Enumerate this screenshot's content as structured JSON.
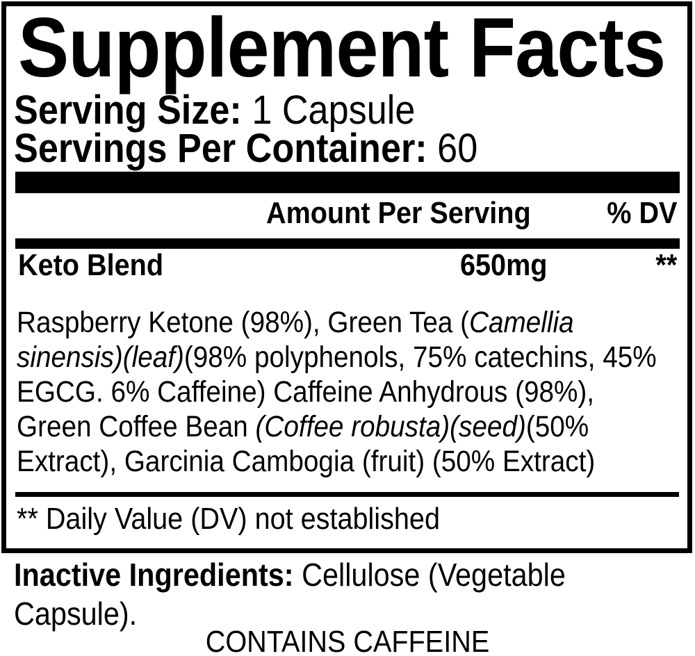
{
  "colors": {
    "ink": "#000000",
    "background": "#ffffff"
  },
  "label": {
    "title": "Supplement Facts",
    "serving_size": {
      "label": "Serving Size:",
      "value": " 1 Capsule"
    },
    "servings_per_container": {
      "label": "Servings Per Container:",
      "value": " 60"
    },
    "columns": {
      "amount_header": "Amount Per Serving",
      "dv_header": "% DV"
    },
    "blend": {
      "name": "Keto Blend",
      "amount": "650mg",
      "dv": "**"
    },
    "ingredients_lines": [
      {
        "pre": "Raspberry Ketone (98%), Green Tea (",
        "italic": "Camellia",
        "post": ""
      },
      {
        "pre": "",
        "italic": "sinensis)(leaf)",
        "post": "(98% polyphenols, 75% catechins, 45%"
      },
      {
        "pre": "EGCG. 6% Caffeine) Caffeine Anhydrous (98%),",
        "italic": "",
        "post": ""
      },
      {
        "pre": "Green Coffee Bean ",
        "italic": "(Coffee robusta)(seed)",
        "post": "(50%"
      },
      {
        "pre": "Extract), Garcinia Cambogia (fruit) (50% Extract)",
        "italic": "",
        "post": ""
      }
    ],
    "footnote": "** Daily Value (DV) not established",
    "inactive": {
      "label": "Inactive Ingredients:",
      "value_line1": " Cellulose (Vegetable",
      "value_line2": "Capsule)."
    },
    "caffeine_notice": "CONTAINS CAFFEINE"
  }
}
